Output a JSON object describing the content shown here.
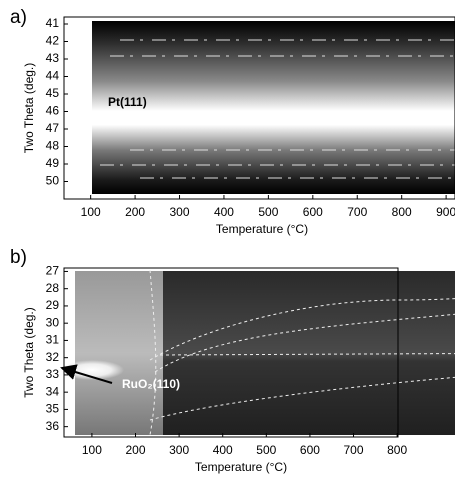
{
  "chart_data": [
    {
      "type": "heatmap",
      "label": "a)",
      "xlabel": "Temperature (°C)",
      "ylabel": "Two Theta (deg.)",
      "annotation": "Pt(111)",
      "xlim": [
        40,
        920
      ],
      "xticks": [
        100,
        200,
        300,
        400,
        500,
        600,
        700,
        800,
        900
      ],
      "ylim": [
        51,
        40.6
      ],
      "yticks": [
        41,
        42,
        43,
        44,
        45,
        46,
        47,
        48,
        49,
        50
      ]
    },
    {
      "type": "heatmap",
      "label": "b)",
      "xlabel": "Temperature (°C)",
      "ylabel": "Two Theta (deg.)",
      "annotation": "RuO₂(110)",
      "xlim": [
        36,
        802
      ],
      "xticks": [
        100,
        200,
        300,
        400,
        500,
        600,
        700,
        800
      ],
      "ylim": [
        36.6,
        26.8
      ],
      "yticks": [
        27,
        28,
        29,
        30,
        31,
        32,
        33,
        34,
        35,
        36
      ]
    }
  ]
}
